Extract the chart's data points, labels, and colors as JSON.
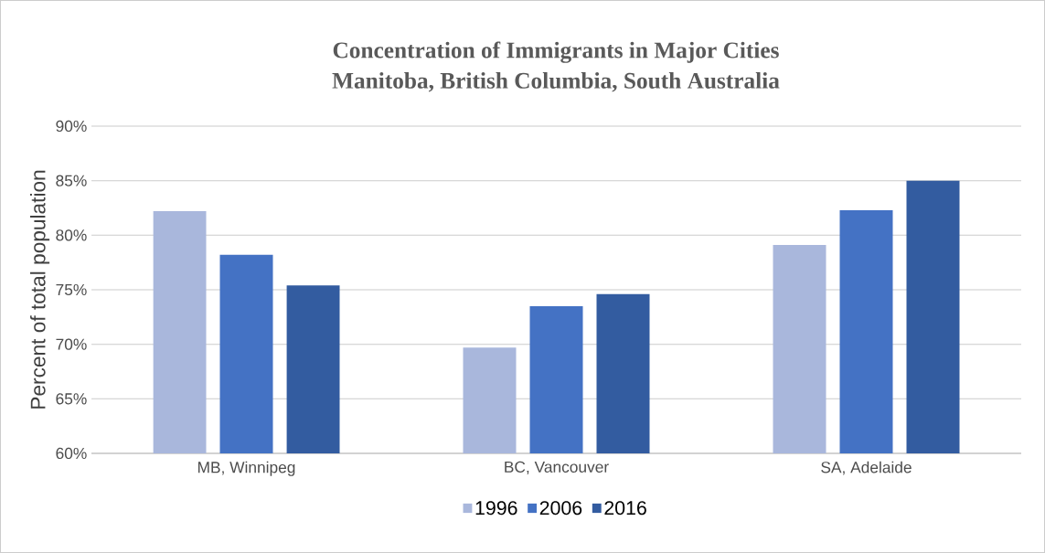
{
  "chart_data": {
    "type": "bar",
    "title": "Concentration of Immigrants in Major Cities",
    "subtitle": "Manitoba, British Columbia, South Australia",
    "ylabel": "Percent of total population",
    "categories": [
      "MB, Winnipeg",
      "BC, Vancouver",
      "SA, Adelaide"
    ],
    "series": [
      {
        "name": "1996",
        "color": "#a9b7dc",
        "values": [
          82.2,
          69.7,
          79.1
        ]
      },
      {
        "name": "2006",
        "color": "#4472c4",
        "values": [
          78.2,
          73.5,
          82.3
        ]
      },
      {
        "name": "2016",
        "color": "#335ca0",
        "values": [
          75.4,
          74.6,
          85.0
        ]
      }
    ],
    "ylim": [
      60,
      90
    ],
    "yticks": [
      {
        "value": 60,
        "label": "60%"
      },
      {
        "value": 65,
        "label": "65%"
      },
      {
        "value": 70,
        "label": "70%"
      },
      {
        "value": 75,
        "label": "75%"
      },
      {
        "value": 80,
        "label": "80%"
      },
      {
        "value": 85,
        "label": "85%"
      },
      {
        "value": 90,
        "label": "90%"
      }
    ],
    "grid": "y",
    "legend": "bottom"
  }
}
